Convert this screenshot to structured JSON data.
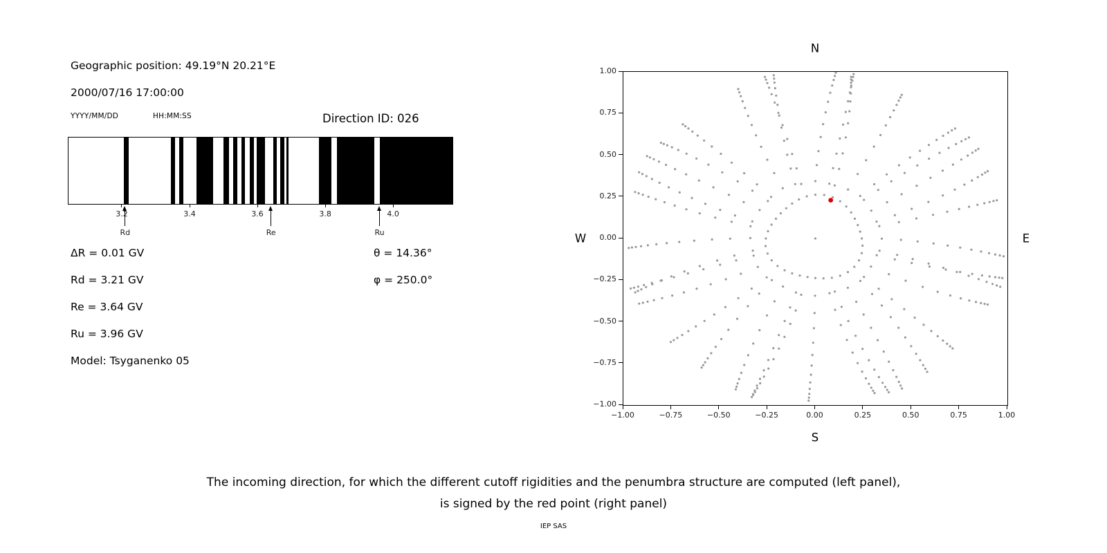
{
  "header": {
    "geo_position": "Geographic position: 49.19°N 20.21°E",
    "datetime": "2000/07/16 17:00:00",
    "date_format_label": "YYYY/MM/DD",
    "time_format_label": "HH:MM:SS"
  },
  "values": {
    "delta_r": "ΔR = 0.01 GV",
    "rd": "Rd = 3.21 GV",
    "re": "Re = 3.64 GV",
    "ru": "Ru = 3.96 GV",
    "model": "Model: Tsyganenko 05",
    "theta": "θ = 14.36°",
    "phi": "φ = 250.0°"
  },
  "caption": {
    "line1": "The incoming direction, for which the different cutoff rigidities and the penumbra structure are computed (left panel),",
    "line2": "is signed by the red point (right panel)"
  },
  "footer": "IEP SAS",
  "chart_data": [
    {
      "type": "heatmap",
      "title": "Direction ID: 026",
      "description": "Penumbra structure: black bands mark rigidity intervals (GV) along the horizontal axis",
      "xlim": [
        3.041,
        4.173
      ],
      "xticks": [
        3.2,
        3.4,
        3.6,
        3.8,
        4.0
      ],
      "bands_gv": [
        [
          3.204,
          3.218
        ],
        [
          3.343,
          3.355
        ],
        [
          3.367,
          3.38
        ],
        [
          3.418,
          3.467
        ],
        [
          3.498,
          3.514
        ],
        [
          3.527,
          3.539
        ],
        [
          3.551,
          3.561
        ],
        [
          3.576,
          3.588
        ],
        [
          3.596,
          3.62
        ],
        [
          3.645,
          3.655
        ],
        [
          3.665,
          3.678
        ],
        [
          3.684,
          3.69
        ],
        [
          3.78,
          3.816
        ],
        [
          3.833,
          3.943
        ],
        [
          3.959,
          4.173
        ]
      ],
      "markers": [
        {
          "label": "Rd",
          "x": 3.21
        },
        {
          "label": "Re",
          "x": 3.64
        },
        {
          "label": "Ru",
          "x": 3.96
        }
      ],
      "band_color": "#000000"
    },
    {
      "type": "scatter",
      "description": "Grid of incoming directions (gray dots); selected incoming direction shown as red point",
      "xlim": [
        -1,
        1
      ],
      "ylim": [
        -1,
        1
      ],
      "xticks": [
        -1.0,
        -0.75,
        -0.5,
        -0.25,
        0.0,
        0.25,
        0.5,
        0.75,
        1.0
      ],
      "yticks": [
        -1.0,
        -0.75,
        -0.5,
        -0.25,
        0.0,
        0.25,
        0.5,
        0.75,
        1.0
      ],
      "compass": {
        "top": "N",
        "right": "E",
        "bottom": "S",
        "left": "W"
      },
      "grid": {
        "center_dot": true,
        "ring_radius": 0.25,
        "ring_count": 36,
        "azimuth_count": 36,
        "spoke_radii": [
          0.34,
          0.44,
          0.53,
          0.62,
          0.7,
          0.77,
          0.83,
          0.88,
          0.92,
          0.95,
          0.972,
          0.99
        ],
        "color": "#999999"
      },
      "red_point": {
        "x": 0.08,
        "y": 0.23,
        "color": "#e00000"
      }
    }
  ]
}
